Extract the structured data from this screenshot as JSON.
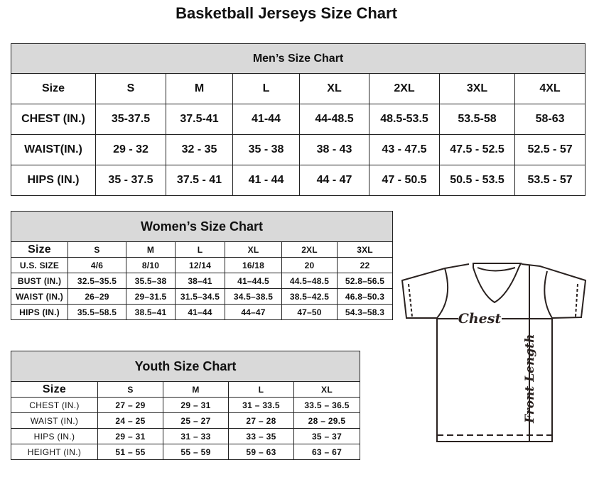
{
  "title": "Basketball Jerseys Size Chart",
  "men": {
    "caption": "Men’s Size Chart",
    "header": [
      "Size",
      "S",
      "M",
      "L",
      "XL",
      "2XL",
      "3XL",
      "4XL"
    ],
    "rows": [
      [
        "CHEST (IN.)",
        "35-37.5",
        "37.5-41",
        "41-44",
        "44-48.5",
        "48.5-53.5",
        "53.5-58",
        "58-63"
      ],
      [
        "WAIST(IN.)",
        "29 - 32",
        "32 - 35",
        "35 - 38",
        "38 - 43",
        "43 - 47.5",
        "47.5 - 52.5",
        "52.5 - 57"
      ],
      [
        "HIPS (IN.)",
        "35 - 37.5",
        "37.5 - 41",
        "41 - 44",
        "44 - 47",
        "47 - 50.5",
        "50.5 - 53.5",
        "53.5 - 57"
      ]
    ]
  },
  "women": {
    "caption": "Women’s Size Chart",
    "header": [
      "Size",
      "S",
      "M",
      "L",
      "XL",
      "2XL",
      "3XL"
    ],
    "rows": [
      [
        "U.S.  SIZE",
        "4/6",
        "8/10",
        "12/14",
        "16/18",
        "20",
        "22"
      ],
      [
        "BUST  (IN.)",
        "32.5–35.5",
        "35.5–38",
        "38–41",
        "41–44.5",
        "44.5–48.5",
        "52.8–56.5"
      ],
      [
        "WAIST  (IN.)",
        "26–29",
        "29–31.5",
        "31.5–34.5",
        "34.5–38.5",
        "38.5–42.5",
        "46.8–50.3"
      ],
      [
        "HIPS  (IN.)",
        "35.5–58.5",
        "38.5–41",
        "41–44",
        "44–47",
        "47–50",
        "54.3–58.3"
      ]
    ]
  },
  "youth": {
    "caption": "Youth Size Chart",
    "header": [
      "Size",
      "S",
      "M",
      "L",
      "XL"
    ],
    "rows": [
      [
        "CHEST  (IN.)",
        "27  –  29",
        "29  –  31",
        "31  –  33.5",
        "33.5  –  36.5"
      ],
      [
        "WAIST  (IN.)",
        "24  –  25",
        "25  –  27",
        "27  –  28",
        "28  –  29.5"
      ],
      [
        "HIPS  (IN.)",
        "29  –  31",
        "31  –  33",
        "33  –  35",
        "35  –  37"
      ],
      [
        "HEIGHT  (IN.)",
        "51  –  55",
        "55  –  59",
        "59  –  63",
        "63  –  67"
      ]
    ]
  },
  "diagram": {
    "chest_label": "Chest",
    "length_label": "Front Length"
  }
}
